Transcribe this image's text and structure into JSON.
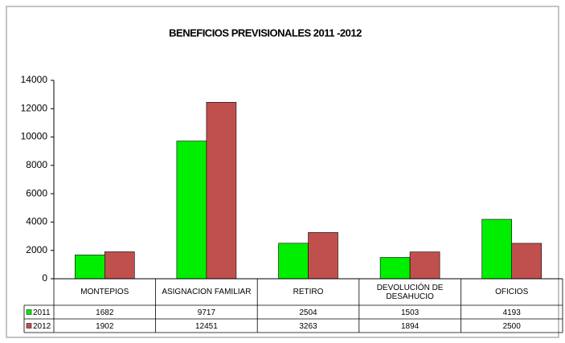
{
  "chart_data": {
    "type": "bar",
    "title": "BENEFICIOS PREVISIONALES 2011 -2012",
    "categories": [
      "MONTEPIOS",
      "ASIGNACION FAMILIAR",
      "RETIRO",
      "DEVOLUCIÓN DE DESAHUCIO",
      "OFICIOS"
    ],
    "series": [
      {
        "name": "2011",
        "color": "#00ee00",
        "values": [
          1682,
          9717,
          2504,
          1503,
          4193
        ]
      },
      {
        "name": "2012",
        "color": "#c0504d",
        "values": [
          1902,
          12451,
          3263,
          1894,
          2500
        ]
      }
    ],
    "ylim": [
      0,
      14000
    ],
    "yticks": [
      0,
      2000,
      4000,
      6000,
      8000,
      10000,
      12000,
      14000
    ],
    "grid": false
  }
}
